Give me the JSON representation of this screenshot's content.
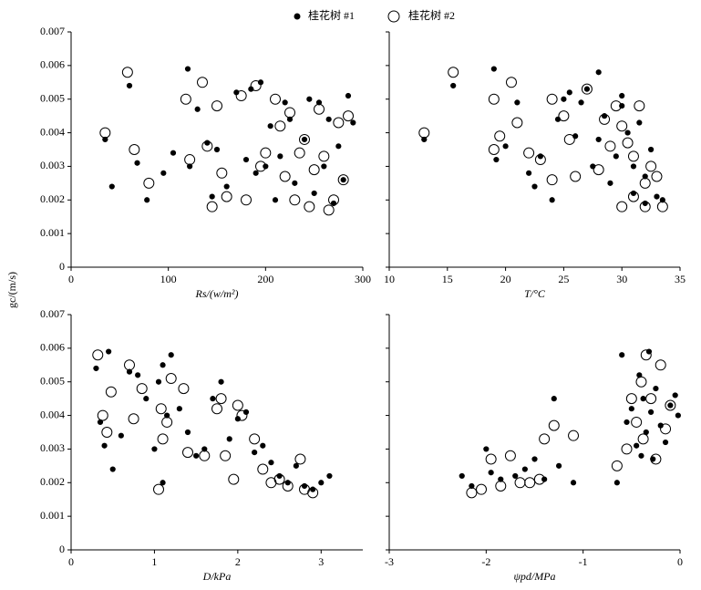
{
  "chart_data": [
    {
      "type": "scatter",
      "xlabel": "Rs/(w/m²)",
      "ylabel": "gc/(m/s)",
      "xlim": [
        0,
        300
      ],
      "xticks": [
        0,
        100,
        200,
        300
      ],
      "ylim": [
        0,
        0.007
      ],
      "yticks": [
        0,
        0.001,
        0.002,
        0.003,
        0.004,
        0.005,
        0.006,
        0.007
      ],
      "series": [
        {
          "name": "桂花树 #1",
          "color": "#000000",
          "marker": "filled",
          "x": [
            35,
            42,
            60,
            68,
            78,
            95,
            105,
            120,
            122,
            130,
            140,
            145,
            150,
            160,
            170,
            180,
            185,
            190,
            195,
            200,
            205,
            210,
            215,
            220,
            225,
            230,
            240,
            245,
            250,
            255,
            260,
            265,
            270,
            275,
            280,
            285,
            290
          ],
          "values": [
            0.0038,
            0.0024,
            0.0054,
            0.0031,
            0.002,
            0.0028,
            0.0034,
            0.0059,
            0.003,
            0.0047,
            0.0037,
            0.0021,
            0.0035,
            0.0024,
            0.0052,
            0.0032,
            0.0053,
            0.0028,
            0.0055,
            0.003,
            0.0042,
            0.002,
            0.0033,
            0.0049,
            0.0044,
            0.0025,
            0.0038,
            0.005,
            0.0022,
            0.0049,
            0.003,
            0.0044,
            0.0019,
            0.0036,
            0.0026,
            0.0051,
            0.0043
          ]
        },
        {
          "name": "桂花树 #2",
          "color": "#000000",
          "marker": "open",
          "x": [
            35,
            58,
            65,
            80,
            118,
            122,
            135,
            140,
            145,
            150,
            155,
            160,
            175,
            180,
            190,
            195,
            200,
            210,
            215,
            220,
            225,
            230,
            235,
            240,
            245,
            250,
            255,
            260,
            265,
            270,
            275,
            280,
            285
          ],
          "values": [
            0.004,
            0.0058,
            0.0035,
            0.0025,
            0.005,
            0.0032,
            0.0055,
            0.0036,
            0.0018,
            0.0048,
            0.0028,
            0.0021,
            0.0051,
            0.002,
            0.0054,
            0.003,
            0.0034,
            0.005,
            0.0042,
            0.0027,
            0.0046,
            0.002,
            0.0034,
            0.0038,
            0.0018,
            0.0029,
            0.0047,
            0.0033,
            0.0017,
            0.002,
            0.0043,
            0.0026,
            0.0045
          ]
        }
      ]
    },
    {
      "type": "scatter",
      "xlabel": "T/°C",
      "xlim": [
        10,
        35
      ],
      "xticks": [
        10,
        15,
        20,
        25,
        30,
        35
      ],
      "ylim": [
        0,
        0.007
      ],
      "yticks": [
        0,
        0.001,
        0.002,
        0.003,
        0.004,
        0.005,
        0.006,
        0.007
      ],
      "series": [
        {
          "color": "#000000",
          "marker": "filled",
          "x": [
            13,
            15.5,
            19,
            19.2,
            20,
            21,
            22,
            23,
            24,
            24.5,
            25,
            25.5,
            26,
            27,
            27.5,
            28,
            28.5,
            29,
            29.5,
            30,
            30.5,
            31,
            31,
            31.5,
            32,
            32,
            32.5,
            33,
            33.5,
            30,
            28,
            26.5,
            22.5
          ],
          "values": [
            0.0038,
            0.0054,
            0.0059,
            0.0032,
            0.0036,
            0.0049,
            0.0028,
            0.0033,
            0.002,
            0.0044,
            0.005,
            0.0052,
            0.0039,
            0.0053,
            0.003,
            0.0058,
            0.0045,
            0.0025,
            0.0033,
            0.0048,
            0.004,
            0.003,
            0.0022,
            0.0043,
            0.0019,
            0.0027,
            0.0035,
            0.0021,
            0.002,
            0.0051,
            0.0038,
            0.0049,
            0.0024
          ]
        },
        {
          "color": "#000000",
          "marker": "open",
          "x": [
            13,
            15.5,
            19,
            19,
            19.5,
            20.5,
            21,
            22,
            23,
            24,
            24,
            25,
            25.5,
            26,
            27,
            28,
            28.5,
            29,
            29.5,
            30,
            30,
            30.5,
            31,
            31,
            31.5,
            32,
            32,
            32.5,
            33,
            33.5
          ],
          "values": [
            0.004,
            0.0058,
            0.005,
            0.0035,
            0.0039,
            0.0055,
            0.0043,
            0.0034,
            0.0032,
            0.005,
            0.0026,
            0.0045,
            0.0038,
            0.0027,
            0.0053,
            0.0029,
            0.0044,
            0.0036,
            0.0048,
            0.0018,
            0.0042,
            0.0037,
            0.0033,
            0.0021,
            0.0048,
            0.0025,
            0.0018,
            0.003,
            0.0027,
            0.0018
          ]
        }
      ]
    },
    {
      "type": "scatter",
      "xlabel": "D/kPa",
      "xlim": [
        0,
        3.5
      ],
      "xticks": [
        0,
        1,
        2,
        3
      ],
      "ylim": [
        0,
        0.007
      ],
      "yticks": [
        0,
        0.001,
        0.002,
        0.003,
        0.004,
        0.005,
        0.006,
        0.007
      ],
      "series": [
        {
          "color": "#000000",
          "marker": "filled",
          "x": [
            0.3,
            0.35,
            0.45,
            0.5,
            0.6,
            0.7,
            0.8,
            0.9,
            1.0,
            1.05,
            1.1,
            1.15,
            1.2,
            1.3,
            1.4,
            1.5,
            1.6,
            1.7,
            1.8,
            1.9,
            2.0,
            2.1,
            2.2,
            2.3,
            2.4,
            2.5,
            2.6,
            2.7,
            2.8,
            2.9,
            3.0,
            3.1,
            1.1,
            0.4
          ],
          "values": [
            0.0054,
            0.0038,
            0.0059,
            0.0024,
            0.0034,
            0.0053,
            0.0052,
            0.0045,
            0.003,
            0.005,
            0.002,
            0.004,
            0.0058,
            0.0042,
            0.0035,
            0.0028,
            0.003,
            0.0045,
            0.005,
            0.0033,
            0.0039,
            0.0041,
            0.0029,
            0.0031,
            0.0026,
            0.0022,
            0.002,
            0.0025,
            0.0019,
            0.0018,
            0.002,
            0.0022,
            0.0055,
            0.0031
          ]
        },
        {
          "color": "#000000",
          "marker": "open",
          "x": [
            0.32,
            0.38,
            0.43,
            0.48,
            0.7,
            0.75,
            0.85,
            1.05,
            1.08,
            1.1,
            1.15,
            1.2,
            1.35,
            1.4,
            1.6,
            1.75,
            1.8,
            1.85,
            1.95,
            2.0,
            2.05,
            2.2,
            2.3,
            2.4,
            2.5,
            2.6,
            2.75,
            2.8,
            2.9
          ],
          "values": [
            0.0058,
            0.004,
            0.0035,
            0.0047,
            0.0055,
            0.0039,
            0.0048,
            0.0018,
            0.0042,
            0.0033,
            0.0038,
            0.0051,
            0.0048,
            0.0029,
            0.0028,
            0.0042,
            0.0045,
            0.0028,
            0.0021,
            0.0043,
            0.004,
            0.0033,
            0.0024,
            0.002,
            0.0021,
            0.0019,
            0.0027,
            0.0018,
            0.0017
          ]
        }
      ]
    },
    {
      "type": "scatter",
      "xlabel": "ψpd/MPa",
      "xlim": [
        -3,
        0
      ],
      "xticks": [
        -3,
        -2,
        -1,
        0
      ],
      "ylim": [
        0,
        0.007
      ],
      "yticks": [
        0,
        0.001,
        0.002,
        0.003,
        0.004,
        0.005,
        0.006,
        0.007
      ],
      "series": [
        {
          "color": "#000000",
          "marker": "filled",
          "x": [
            -2.25,
            -2.15,
            -2.0,
            -1.95,
            -1.85,
            -1.7,
            -1.6,
            -1.5,
            -1.4,
            -1.3,
            -1.25,
            -1.1,
            -0.65,
            -0.6,
            -0.55,
            -0.5,
            -0.45,
            -0.42,
            -0.4,
            -0.38,
            -0.35,
            -0.32,
            -0.3,
            -0.28,
            -0.25,
            -0.2,
            -0.15,
            -0.1,
            -0.05,
            -0.02
          ],
          "values": [
            0.0022,
            0.0019,
            0.003,
            0.0023,
            0.0021,
            0.0022,
            0.0024,
            0.0027,
            0.0021,
            0.0045,
            0.0025,
            0.002,
            0.002,
            0.0058,
            0.0038,
            0.0042,
            0.0031,
            0.0052,
            0.0028,
            0.0045,
            0.0035,
            0.0059,
            0.0041,
            0.0027,
            0.0048,
            0.0037,
            0.0032,
            0.0043,
            0.0046,
            0.004
          ]
        },
        {
          "color": "#000000",
          "marker": "open",
          "x": [
            -2.15,
            -2.05,
            -1.95,
            -1.85,
            -1.75,
            -1.65,
            -1.55,
            -1.45,
            -1.4,
            -1.3,
            -1.1,
            -0.65,
            -0.55,
            -0.5,
            -0.45,
            -0.4,
            -0.38,
            -0.35,
            -0.3,
            -0.25,
            -0.2,
            -0.15,
            -0.1
          ],
          "values": [
            0.0017,
            0.0018,
            0.0027,
            0.0019,
            0.0028,
            0.002,
            0.002,
            0.0021,
            0.0033,
            0.0037,
            0.0034,
            0.0025,
            0.003,
            0.0045,
            0.0038,
            0.005,
            0.0033,
            0.0058,
            0.0045,
            0.0027,
            0.0055,
            0.0036,
            0.0043
          ]
        }
      ]
    }
  ]
}
